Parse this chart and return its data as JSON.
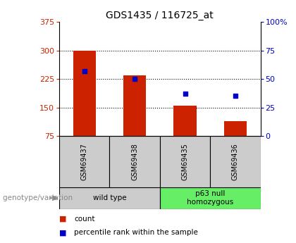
{
  "title": "GDS1435 / 116725_at",
  "samples": [
    "GSM69437",
    "GSM69438",
    "GSM69435",
    "GSM69436"
  ],
  "bar_values": [
    300,
    235,
    155,
    115
  ],
  "percentile_values": [
    57,
    50,
    37,
    35
  ],
  "left_ylim": [
    75,
    375
  ],
  "left_yticks": [
    75,
    150,
    225,
    300,
    375
  ],
  "right_ylim": [
    0,
    100
  ],
  "right_yticks": [
    0,
    25,
    50,
    75,
    100
  ],
  "bar_color": "#cc2200",
  "dot_color": "#0000cc",
  "groups": [
    {
      "label": "wild type",
      "indices": [
        0,
        1
      ],
      "color": "#cccccc"
    },
    {
      "label": "p63 null\nhomozygous",
      "indices": [
        2,
        3
      ],
      "color": "#66ee66"
    }
  ],
  "genotype_label": "genotype/variation",
  "sample_box_color": "#cccccc",
  "bar_width": 0.45,
  "grid_yticks": [
    150,
    225,
    300
  ]
}
